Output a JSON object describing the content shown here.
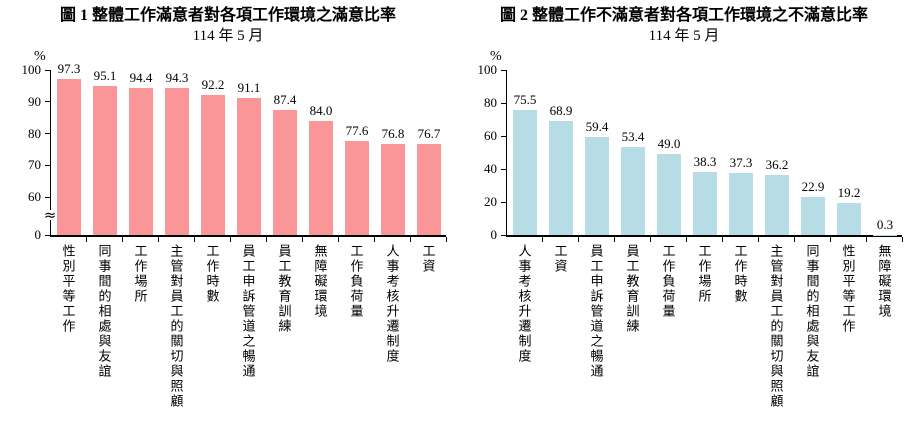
{
  "chart_data": [
    {
      "type": "bar",
      "title": "圖 1 整體工作滿意者對各項工作環境之滿意比率",
      "subtitle": "114 年 5 月",
      "unit_label": "%",
      "bar_color": "#fa9598",
      "categories": [
        "性別平等工作",
        "同事間的相處與友誼",
        "工作場所",
        "主管對員工的關切與照顧",
        "工作時數",
        "員工申訴管道之暢通",
        "員工教育訓練",
        "無障礙環境",
        "工作負荷量",
        "人事考核升遷制度",
        "工資"
      ],
      "values": [
        97.3,
        95.1,
        94.4,
        94.3,
        92.2,
        91.1,
        87.4,
        84.0,
        77.6,
        76.8,
        76.7
      ],
      "xlabel": "",
      "ylabel": "%",
      "ylim": [
        0,
        100
      ],
      "yticks": [
        0,
        60,
        70,
        80,
        90,
        100
      ],
      "axis_break": true,
      "axis_break_symbol": "≈",
      "grid": false,
      "legend": "none",
      "data_labels": true
    },
    {
      "type": "bar",
      "title": "圖 2 整體工作不滿意者對各項工作環境之不滿意比率",
      "subtitle": "114 年 5 月",
      "unit_label": "%",
      "bar_color": "#b8dce6",
      "categories": [
        "人事考核升遷制度",
        "工資",
        "員工申訴管道之暢通",
        "員工教育訓練",
        "工作負荷量",
        "工作場所",
        "工作時數",
        "主管對員工的關切與照顧",
        "同事間的相處與友誼",
        "性別平等工作",
        "無障礙環境"
      ],
      "values": [
        75.5,
        68.9,
        59.4,
        53.4,
        49.0,
        38.3,
        37.3,
        36.2,
        22.9,
        19.2,
        0.3
      ],
      "xlabel": "",
      "ylabel": "%",
      "ylim": [
        0,
        100
      ],
      "yticks": [
        0,
        20,
        40,
        60,
        80,
        100
      ],
      "axis_break": false,
      "grid": false,
      "legend": "none",
      "data_labels": true
    }
  ]
}
